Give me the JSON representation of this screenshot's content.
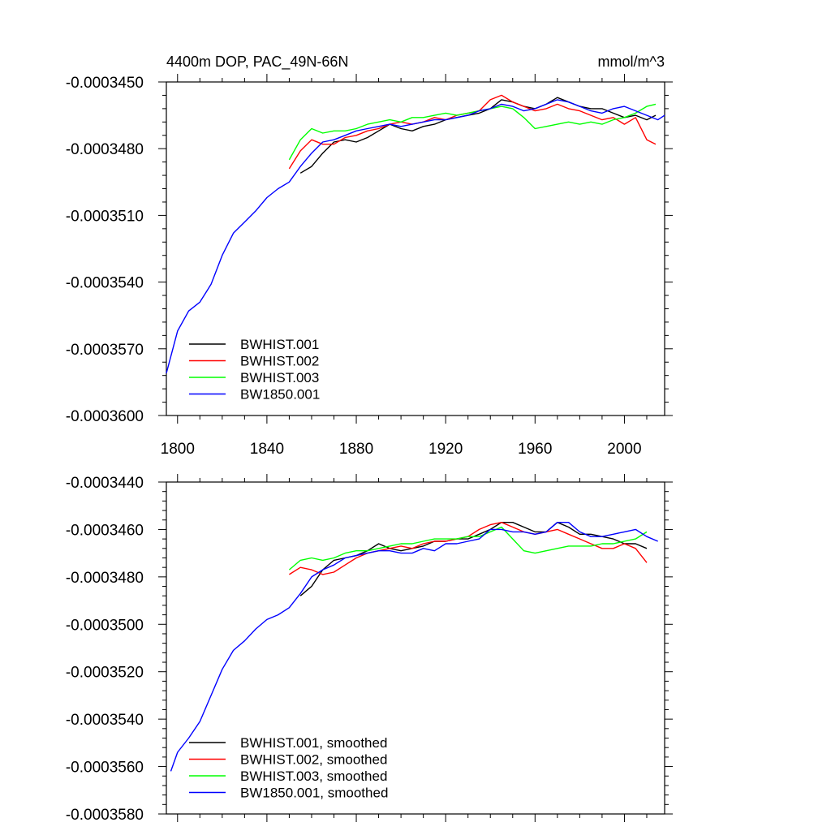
{
  "chart_data": [
    {
      "type": "line",
      "title": "4400m DOP, PAC_49N-66N",
      "units": "mmol/m^3",
      "xlim": [
        1795,
        2018
      ],
      "ylim": [
        -0.00036,
        -0.000345
      ],
      "xticks": [
        1800,
        1840,
        1880,
        1920,
        1960,
        2000
      ],
      "xtick_labels": [
        "1800",
        "1840",
        "1880",
        "1920",
        "1960",
        "2000"
      ],
      "yticks": [
        -0.000345,
        -0.000348,
        -0.000351,
        -0.000354,
        -0.000357,
        -0.00036
      ],
      "ytick_labels": [
        "-0.0003450",
        "-0.0003480",
        "-0.0003510",
        "-0.0003540",
        "-0.0003570",
        "-0.0003600"
      ],
      "legend_position": "bottom-left",
      "series": [
        {
          "name": "BWHIST.001",
          "color": "#000000",
          "x": [
            1855,
            1860,
            1865,
            1870,
            1875,
            1880,
            1885,
            1890,
            1895,
            1900,
            1905,
            1910,
            1915,
            1920,
            1925,
            1930,
            1935,
            1940,
            1945,
            1950,
            1955,
            1960,
            1965,
            1970,
            1975,
            1980,
            1985,
            1990,
            1995,
            2000,
            2005,
            2010,
            2014
          ],
          "y": [
            -0.0003491,
            -0.0003488,
            -0.0003482,
            -0.0003477,
            -0.0003476,
            -0.0003477,
            -0.0003475,
            -0.0003472,
            -0.0003469,
            -0.0003471,
            -0.0003472,
            -0.000347,
            -0.0003469,
            -0.0003467,
            -0.0003466,
            -0.0003465,
            -0.0003464,
            -0.0003462,
            -0.0003458,
            -0.0003459,
            -0.0003461,
            -0.0003462,
            -0.000346,
            -0.0003457,
            -0.0003459,
            -0.0003461,
            -0.0003462,
            -0.0003462,
            -0.0003464,
            -0.0003466,
            -0.0003465,
            -0.0003467,
            -0.0003465
          ]
        },
        {
          "name": "BWHIST.002",
          "color": "#ff0000",
          "x": [
            1850,
            1855,
            1860,
            1865,
            1870,
            1875,
            1880,
            1885,
            1890,
            1895,
            1900,
            1905,
            1910,
            1915,
            1920,
            1925,
            1930,
            1935,
            1940,
            1945,
            1950,
            1955,
            1960,
            1965,
            1970,
            1975,
            1980,
            1985,
            1990,
            1995,
            2000,
            2005,
            2010,
            2014
          ],
          "y": [
            -0.0003489,
            -0.0003481,
            -0.0003476,
            -0.0003478,
            -0.0003478,
            -0.0003475,
            -0.0003474,
            -0.0003472,
            -0.0003471,
            -0.0003469,
            -0.0003468,
            -0.0003469,
            -0.0003468,
            -0.0003466,
            -0.0003467,
            -0.0003465,
            -0.0003464,
            -0.0003463,
            -0.0003458,
            -0.0003456,
            -0.0003459,
            -0.0003461,
            -0.0003463,
            -0.0003462,
            -0.000346,
            -0.0003462,
            -0.0003463,
            -0.0003465,
            -0.0003467,
            -0.0003466,
            -0.0003469,
            -0.0003466,
            -0.0003476,
            -0.0003478
          ]
        },
        {
          "name": "BWHIST.003",
          "color": "#00ff00",
          "x": [
            1850,
            1855,
            1860,
            1865,
            1870,
            1875,
            1880,
            1885,
            1890,
            1895,
            1900,
            1905,
            1910,
            1915,
            1920,
            1925,
            1930,
            1935,
            1940,
            1945,
            1950,
            1955,
            1960,
            1965,
            1970,
            1975,
            1980,
            1985,
            1990,
            1995,
            2000,
            2005,
            2010,
            2014
          ],
          "y": [
            -0.0003485,
            -0.0003476,
            -0.0003471,
            -0.0003473,
            -0.0003472,
            -0.0003472,
            -0.0003471,
            -0.0003469,
            -0.0003468,
            -0.0003467,
            -0.0003468,
            -0.0003466,
            -0.0003466,
            -0.0003465,
            -0.0003464,
            -0.0003465,
            -0.0003464,
            -0.0003463,
            -0.0003462,
            -0.0003461,
            -0.0003462,
            -0.0003466,
            -0.0003471,
            -0.000347,
            -0.0003469,
            -0.0003468,
            -0.0003469,
            -0.0003468,
            -0.0003469,
            -0.0003467,
            -0.0003466,
            -0.0003464,
            -0.0003461,
            -0.000346
          ]
        },
        {
          "name": "BW1850.001",
          "color": "#0000ff",
          "x": [
            1795,
            1800,
            1805,
            1810,
            1815,
            1820,
            1825,
            1830,
            1835,
            1840,
            1845,
            1850,
            1855,
            1860,
            1865,
            1870,
            1875,
            1880,
            1885,
            1890,
            1895,
            1900,
            1905,
            1910,
            1915,
            1920,
            1925,
            1930,
            1935,
            1940,
            1945,
            1950,
            1955,
            1960,
            1965,
            1970,
            1975,
            1980,
            1985,
            1990,
            1995,
            2000,
            2005,
            2010,
            2015,
            2018
          ],
          "y": [
            -0.0003581,
            -0.0003562,
            -0.0003553,
            -0.0003549,
            -0.0003541,
            -0.0003528,
            -0.0003518,
            -0.0003513,
            -0.0003508,
            -0.0003502,
            -0.0003498,
            -0.0003495,
            -0.0003488,
            -0.0003482,
            -0.0003477,
            -0.0003476,
            -0.0003474,
            -0.0003472,
            -0.0003471,
            -0.000347,
            -0.0003469,
            -0.000347,
            -0.0003469,
            -0.0003468,
            -0.0003467,
            -0.0003467,
            -0.0003466,
            -0.0003465,
            -0.0003463,
            -0.0003462,
            -0.000346,
            -0.0003461,
            -0.0003463,
            -0.0003462,
            -0.000346,
            -0.0003458,
            -0.0003459,
            -0.0003461,
            -0.0003463,
            -0.0003464,
            -0.0003462,
            -0.0003461,
            -0.0003463,
            -0.0003465,
            -0.0003467,
            -0.0003465
          ]
        }
      ]
    },
    {
      "type": "line",
      "title": "",
      "xlim": [
        1795,
        2018
      ],
      "ylim": [
        -0.000358,
        -0.000344
      ],
      "xticks": [
        1800,
        1840,
        1880,
        1920,
        1960,
        2000
      ],
      "yticks": [
        -0.000344,
        -0.000346,
        -0.000348,
        -0.00035,
        -0.000352,
        -0.000354,
        -0.000356,
        -0.000358
      ],
      "ytick_labels": [
        "-0.0003440",
        "-0.0003460",
        "-0.0003480",
        "-0.0003500",
        "-0.0003520",
        "-0.0003540",
        "-0.0003560",
        "-0.0003580"
      ],
      "legend_position": "bottom-left",
      "series": [
        {
          "name": "BWHIST.001, smoothed",
          "color": "#000000",
          "x": [
            1855,
            1860,
            1865,
            1870,
            1875,
            1880,
            1885,
            1890,
            1895,
            1900,
            1905,
            1910,
            1915,
            1920,
            1925,
            1930,
            1935,
            1940,
            1945,
            1950,
            1955,
            1960,
            1965,
            1970,
            1975,
            1980,
            1985,
            1990,
            1995,
            2000,
            2005,
            2010
          ],
          "y": [
            -0.0003488,
            -0.0003484,
            -0.0003477,
            -0.0003473,
            -0.0003472,
            -0.0003471,
            -0.0003469,
            -0.0003466,
            -0.0003468,
            -0.0003469,
            -0.0003468,
            -0.0003467,
            -0.0003465,
            -0.0003465,
            -0.0003464,
            -0.0003464,
            -0.0003462,
            -0.000346,
            -0.0003457,
            -0.0003457,
            -0.0003459,
            -0.0003461,
            -0.0003461,
            -0.0003457,
            -0.0003459,
            -0.0003462,
            -0.0003462,
            -0.0003463,
            -0.0003464,
            -0.0003466,
            -0.0003466,
            -0.0003468
          ]
        },
        {
          "name": "BWHIST.002, smoothed",
          "color": "#ff0000",
          "x": [
            1850,
            1855,
            1860,
            1865,
            1870,
            1875,
            1880,
            1885,
            1890,
            1895,
            1900,
            1905,
            1910,
            1915,
            1920,
            1925,
            1930,
            1935,
            1940,
            1945,
            1950,
            1955,
            1960,
            1965,
            1970,
            1975,
            1980,
            1985,
            1990,
            1995,
            2000,
            2005,
            2010
          ],
          "y": [
            -0.0003479,
            -0.0003476,
            -0.0003477,
            -0.0003479,
            -0.0003478,
            -0.0003475,
            -0.0003472,
            -0.000347,
            -0.0003469,
            -0.0003468,
            -0.0003467,
            -0.0003468,
            -0.0003466,
            -0.0003465,
            -0.0003465,
            -0.0003464,
            -0.0003463,
            -0.000346,
            -0.0003458,
            -0.0003457,
            -0.0003459,
            -0.0003461,
            -0.0003462,
            -0.0003461,
            -0.000346,
            -0.0003462,
            -0.0003464,
            -0.0003466,
            -0.0003468,
            -0.0003468,
            -0.0003466,
            -0.0003468,
            -0.0003474
          ]
        },
        {
          "name": "BWHIST.003, smoothed",
          "color": "#00ff00",
          "x": [
            1850,
            1855,
            1860,
            1865,
            1870,
            1875,
            1880,
            1885,
            1890,
            1895,
            1900,
            1905,
            1910,
            1915,
            1920,
            1925,
            1930,
            1935,
            1940,
            1945,
            1950,
            1955,
            1960,
            1965,
            1970,
            1975,
            1980,
            1985,
            1990,
            1995,
            2000,
            2005,
            2010
          ],
          "y": [
            -0.0003477,
            -0.0003473,
            -0.0003472,
            -0.0003473,
            -0.0003472,
            -0.000347,
            -0.0003469,
            -0.0003469,
            -0.0003468,
            -0.0003467,
            -0.0003466,
            -0.0003466,
            -0.0003465,
            -0.0003464,
            -0.0003464,
            -0.0003464,
            -0.0003463,
            -0.0003463,
            -0.0003461,
            -0.0003459,
            -0.0003464,
            -0.0003469,
            -0.000347,
            -0.0003469,
            -0.0003468,
            -0.0003467,
            -0.0003467,
            -0.0003467,
            -0.0003466,
            -0.0003466,
            -0.0003465,
            -0.0003464,
            -0.0003461
          ]
        },
        {
          "name": "BW1850.001, smoothed",
          "color": "#0000ff",
          "x": [
            1797,
            1800,
            1805,
            1810,
            1815,
            1820,
            1825,
            1830,
            1835,
            1840,
            1845,
            1850,
            1855,
            1860,
            1865,
            1870,
            1875,
            1880,
            1885,
            1890,
            1895,
            1900,
            1905,
            1910,
            1915,
            1920,
            1925,
            1930,
            1935,
            1940,
            1945,
            1950,
            1955,
            1960,
            1965,
            1970,
            1975,
            1980,
            1985,
            1990,
            1995,
            2000,
            2005,
            2010,
            2015
          ],
          "y": [
            -0.0003562,
            -0.0003554,
            -0.0003548,
            -0.0003541,
            -0.000353,
            -0.0003519,
            -0.0003511,
            -0.0003507,
            -0.0003502,
            -0.0003498,
            -0.0003496,
            -0.0003493,
            -0.0003487,
            -0.000348,
            -0.0003477,
            -0.0003475,
            -0.0003472,
            -0.0003471,
            -0.000347,
            -0.0003469,
            -0.0003469,
            -0.000347,
            -0.000347,
            -0.0003468,
            -0.0003469,
            -0.0003466,
            -0.0003466,
            -0.0003465,
            -0.0003464,
            -0.000346,
            -0.000346,
            -0.0003461,
            -0.0003461,
            -0.0003462,
            -0.0003461,
            -0.0003457,
            -0.0003457,
            -0.0003461,
            -0.0003463,
            -0.0003463,
            -0.0003462,
            -0.0003461,
            -0.000346,
            -0.0003463,
            -0.0003465
          ]
        }
      ]
    }
  ]
}
